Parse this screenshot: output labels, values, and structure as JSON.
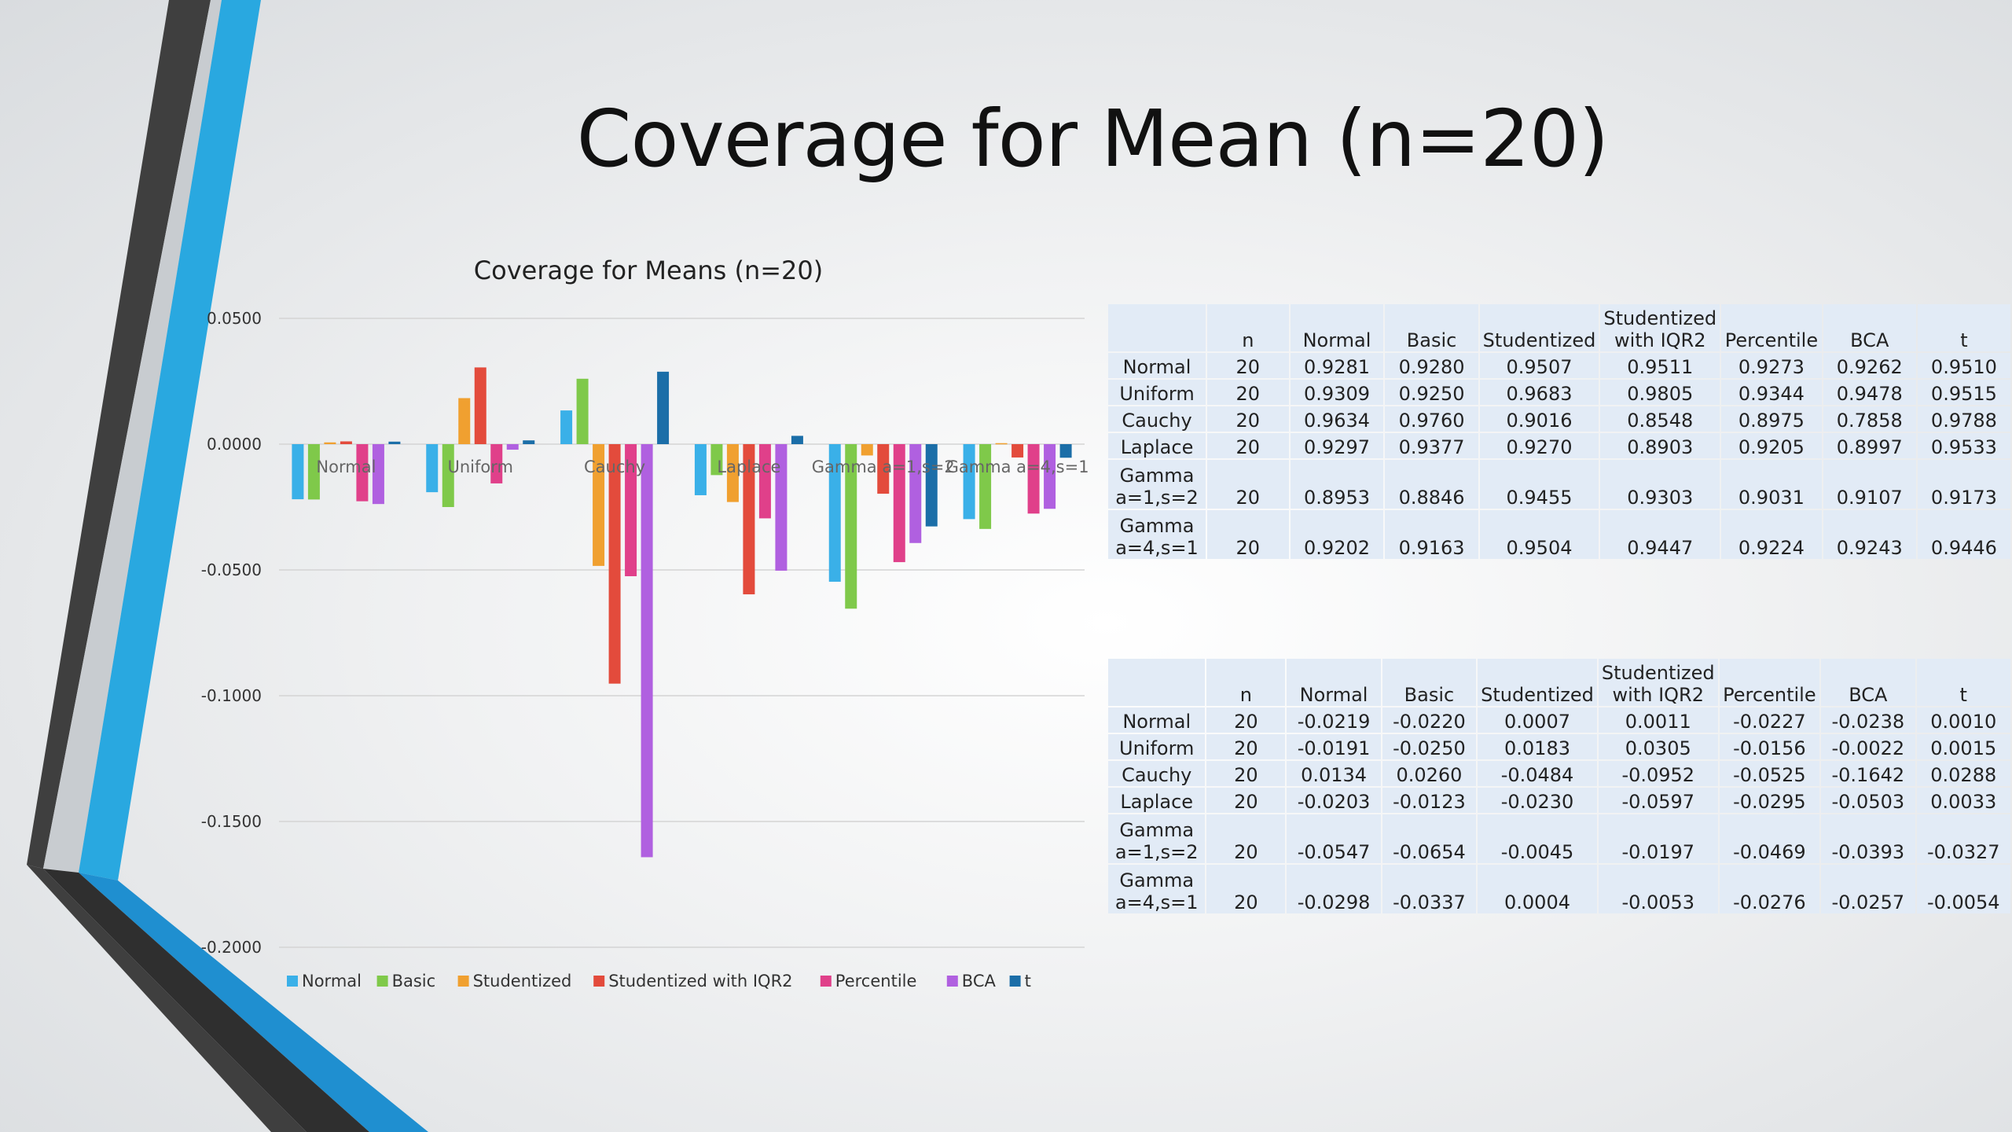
{
  "slide": {
    "title": "Coverage for Mean (n=20)"
  },
  "colors": {
    "dark_stripe": "#3f3f3f",
    "blue_stripe": "#29a8e0",
    "table_cell": "#e2ebf6"
  },
  "chart_data": {
    "type": "bar",
    "title": "Coverage for Means (n=20)",
    "categories": [
      "Normal",
      "Uniform",
      "Cauchy",
      "Laplace",
      "Gamma a=1,s=2",
      "Gamma a=4,s=1"
    ],
    "ylim": [
      -0.2,
      0.05
    ],
    "yticks": [
      "0.0500",
      "0.0000",
      "-0.0500",
      "-0.1000",
      "-0.1500",
      "-0.2000"
    ],
    "grid": true,
    "legend_position": "bottom",
    "series": [
      {
        "name": "Normal",
        "color": "#3ab0e8",
        "values": [
          -0.0219,
          -0.0191,
          0.0134,
          -0.0203,
          -0.0547,
          -0.0298
        ]
      },
      {
        "name": "Basic",
        "color": "#7fc94a",
        "values": [
          -0.022,
          -0.025,
          0.026,
          -0.0123,
          -0.0654,
          -0.0337
        ]
      },
      {
        "name": "Studentized",
        "color": "#f0a030",
        "values": [
          0.0007,
          0.0183,
          -0.0484,
          -0.023,
          -0.0045,
          0.0004
        ]
      },
      {
        "name": "Studentized with IQR2",
        "color": "#e34b3c",
        "values": [
          0.0011,
          0.0305,
          -0.0952,
          -0.0597,
          -0.0197,
          -0.0053
        ]
      },
      {
        "name": "Percentile",
        "color": "#e0408a",
        "values": [
          -0.0227,
          -0.0156,
          -0.0525,
          -0.0295,
          -0.0469,
          -0.0276
        ]
      },
      {
        "name": "BCA",
        "color": "#b060e0",
        "values": [
          -0.0238,
          -0.0022,
          -0.1642,
          -0.0503,
          -0.0393,
          -0.0257
        ]
      },
      {
        "name": "t",
        "color": "#1b6ea8",
        "values": [
          0.001,
          0.0015,
          0.0288,
          0.0033,
          -0.0327,
          -0.0054
        ]
      }
    ]
  },
  "coverage_table": {
    "headers": [
      "",
      "n",
      "Normal",
      "Basic",
      "Studentized",
      "Studentized with IQR2",
      "Percentile",
      "BCA",
      "t"
    ],
    "rows": [
      {
        "label": "Normal",
        "n": "20",
        "values": [
          "0.9281",
          "0.9280",
          "0.9507",
          "0.9511",
          "0.9273",
          "0.9262",
          "0.9510"
        ]
      },
      {
        "label": "Uniform",
        "n": "20",
        "values": [
          "0.9309",
          "0.9250",
          "0.9683",
          "0.9805",
          "0.9344",
          "0.9478",
          "0.9515"
        ]
      },
      {
        "label": "Cauchy",
        "n": "20",
        "values": [
          "0.9634",
          "0.9760",
          "0.9016",
          "0.8548",
          "0.8975",
          "0.7858",
          "0.9788"
        ]
      },
      {
        "label": "Laplace",
        "n": "20",
        "values": [
          "0.9297",
          "0.9377",
          "0.9270",
          "0.8903",
          "0.9205",
          "0.8997",
          "0.9533"
        ]
      },
      {
        "label": "Gamma a=1,s=2",
        "n": "20",
        "values": [
          "0.8953",
          "0.8846",
          "0.9455",
          "0.9303",
          "0.9031",
          "0.9107",
          "0.9173"
        ]
      },
      {
        "label": "Gamma a=4,s=1",
        "n": "20",
        "values": [
          "0.9202",
          "0.9163",
          "0.9504",
          "0.9447",
          "0.9224",
          "0.9243",
          "0.9446"
        ]
      }
    ]
  },
  "difference_table": {
    "headers": [
      "",
      "n",
      "Normal",
      "Basic",
      "Studentized",
      "Studentized with IQR2",
      "Percentile",
      "BCA",
      "t"
    ],
    "rows": [
      {
        "label": "Normal",
        "n": "20",
        "values": [
          "-0.0219",
          "-0.0220",
          "0.0007",
          "0.0011",
          "-0.0227",
          "-0.0238",
          "0.0010"
        ]
      },
      {
        "label": "Uniform",
        "n": "20",
        "values": [
          "-0.0191",
          "-0.0250",
          "0.0183",
          "0.0305",
          "-0.0156",
          "-0.0022",
          "0.0015"
        ]
      },
      {
        "label": "Cauchy",
        "n": "20",
        "values": [
          "0.0134",
          "0.0260",
          "-0.0484",
          "-0.0952",
          "-0.0525",
          "-0.1642",
          "0.0288"
        ]
      },
      {
        "label": "Laplace",
        "n": "20",
        "values": [
          "-0.0203",
          "-0.0123",
          "-0.0230",
          "-0.0597",
          "-0.0295",
          "-0.0503",
          "0.0033"
        ]
      },
      {
        "label": "Gamma a=1,s=2",
        "n": "20",
        "values": [
          "-0.0547",
          "-0.0654",
          "-0.0045",
          "-0.0197",
          "-0.0469",
          "-0.0393",
          "-0.0327"
        ]
      },
      {
        "label": "Gamma a=4,s=1",
        "n": "20",
        "values": [
          "-0.0298",
          "-0.0337",
          "0.0004",
          "-0.0053",
          "-0.0276",
          "-0.0257",
          "-0.0054"
        ]
      }
    ]
  }
}
